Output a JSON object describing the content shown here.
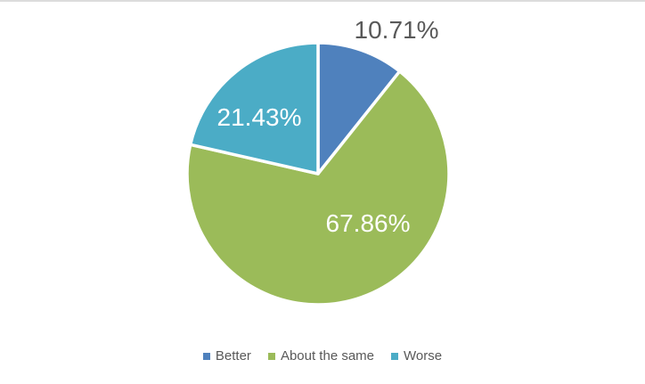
{
  "page": {
    "background": "#FFFFFF",
    "top_border_color": "#DCDCDC"
  },
  "chart_data": {
    "type": "pie",
    "title": "",
    "categories": [
      "Better",
      "About the same",
      "Worse"
    ],
    "values": [
      10.71,
      67.86,
      21.43
    ],
    "data_labels": [
      "10.71%",
      "67.86%",
      "21.43%"
    ],
    "colors": [
      "#4F81BD",
      "#9BBB59",
      "#4BACC6"
    ],
    "data_label_colors": [
      "#595959",
      "#FFFFFF",
      "#FFFFFF"
    ],
    "data_label_placement": [
      "outside-end",
      "inside",
      "inside"
    ],
    "slice_border_color": "#FFFFFF",
    "start_angle_deg": 0,
    "direction": "clockwise",
    "legend_position": "bottom",
    "legend_text_color": "#595959"
  }
}
